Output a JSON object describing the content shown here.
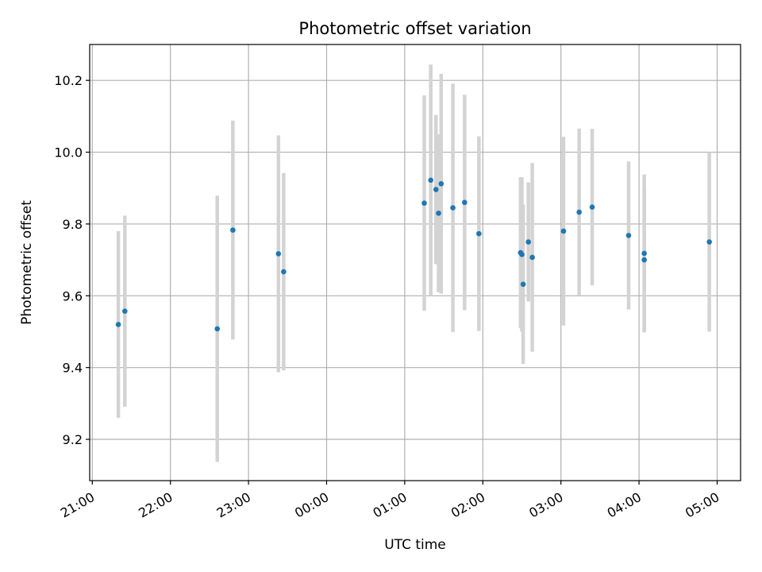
{
  "chart_data": {
    "type": "scatter",
    "title": "Photometric offset variation",
    "xlabel": "UTC time",
    "ylabel": "Photometric offset",
    "x_ticks": [
      "21:00",
      "22:00",
      "23:00",
      "00:00",
      "01:00",
      "02:00",
      "03:00",
      "04:00",
      "05:00"
    ],
    "y_ticks": [
      "9.2",
      "9.4",
      "9.6",
      "9.8",
      "10.0",
      "10.2"
    ],
    "xlim": [
      "20:58",
      "05:18"
    ],
    "ylim": [
      9.085,
      10.3
    ],
    "grid": true,
    "colors": {
      "points": "#1f77b4",
      "errorbars": "#d3d3d3",
      "grid": "#b0b0b0"
    },
    "points": [
      {
        "x": "21:20",
        "y": 9.52,
        "err": 0.26
      },
      {
        "x": "21:25",
        "y": 9.557,
        "err": 0.266
      },
      {
        "x": "22:36",
        "y": 9.508,
        "err": 0.371
      },
      {
        "x": "22:48",
        "y": 9.783,
        "err": 0.305
      },
      {
        "x": "23:23",
        "y": 9.717,
        "err": 0.33
      },
      {
        "x": "23:27",
        "y": 9.667,
        "err": 0.275
      },
      {
        "x": "01:15",
        "y": 9.858,
        "err": 0.3
      },
      {
        "x": "01:20",
        "y": 9.922,
        "err": 0.322
      },
      {
        "x": "01:24",
        "y": 9.896,
        "err": 0.208
      },
      {
        "x": "01:26",
        "y": 9.83,
        "err": 0.22
      },
      {
        "x": "01:28",
        "y": 9.912,
        "err": 0.306
      },
      {
        "x": "01:37",
        "y": 9.845,
        "err": 0.346
      },
      {
        "x": "01:46",
        "y": 9.86,
        "err": 0.3
      },
      {
        "x": "01:57",
        "y": 9.773,
        "err": 0.271
      },
      {
        "x": "02:29",
        "y": 9.72,
        "err": 0.21
      },
      {
        "x": "02:30",
        "y": 9.715,
        "err": 0.215
      },
      {
        "x": "02:31",
        "y": 9.632,
        "err": 0.222
      },
      {
        "x": "02:35",
        "y": 9.75,
        "err": 0.166
      },
      {
        "x": "02:38",
        "y": 9.707,
        "err": 0.263
      },
      {
        "x": "03:02",
        "y": 9.78,
        "err": 0.263
      },
      {
        "x": "03:14",
        "y": 9.833,
        "err": 0.233
      },
      {
        "x": "03:24",
        "y": 9.847,
        "err": 0.218
      },
      {
        "x": "03:52",
        "y": 9.768,
        "err": 0.206
      },
      {
        "x": "04:04",
        "y": 9.718,
        "err": 0.22
      },
      {
        "x": "04:04",
        "y": 9.7,
        "err": 0.2
      },
      {
        "x": "04:54",
        "y": 9.75,
        "err": 0.25
      }
    ]
  }
}
